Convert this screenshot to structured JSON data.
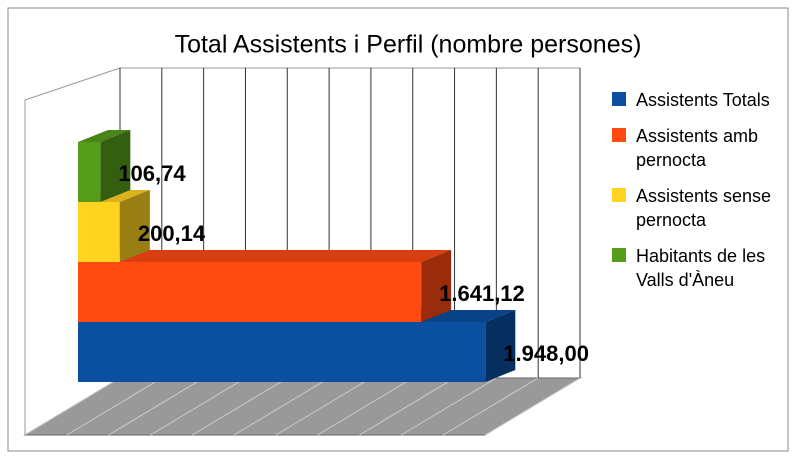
{
  "chart_data": {
    "type": "bar3d",
    "orientation": "horizontal",
    "title": "Total Assistents i Perfil (nombre persones)",
    "series": [
      {
        "name": "Assistents Totals",
        "color": "#0a4fa0",
        "values": [
          1948
        ],
        "value_labels": [
          "1.948,00"
        ]
      },
      {
        "name": "Assistents amb pernocta",
        "color": "#ff4a12",
        "values": [
          1641.12
        ],
        "value_labels": [
          "1.641,12"
        ]
      },
      {
        "name": "Assistents sense pernocta",
        "color": "#ffd320",
        "values": [
          200.14
        ],
        "value_labels": [
          "200,14"
        ]
      },
      {
        "name": "Habitants de les Valls d'Àneu",
        "color": "#579d1c",
        "values": [
          106.74
        ],
        "value_labels": [
          "106,74"
        ]
      }
    ],
    "xlim": [
      0,
      2200
    ],
    "xticks": [
      0,
      200,
      400,
      600,
      800,
      1000,
      1200,
      1400,
      1600,
      1800,
      2000,
      2200
    ],
    "grid": true,
    "legend": "right"
  }
}
